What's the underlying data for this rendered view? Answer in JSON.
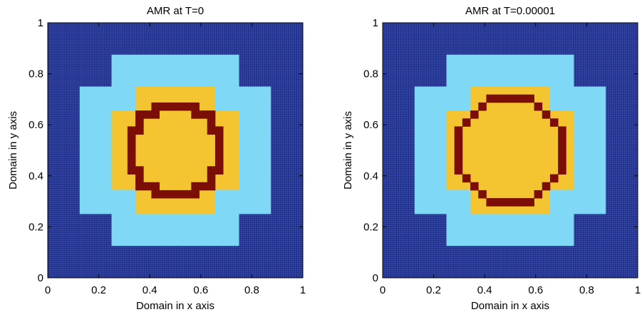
{
  "chart_data": [
    {
      "type": "heatmap",
      "title": "AMR at T=0",
      "xlabel": "Domain in x axis",
      "ylabel": "Domain in y axis",
      "xlim": [
        0,
        1
      ],
      "ylim": [
        0,
        1
      ],
      "xticks": [
        "0",
        "0.2",
        "0.4",
        "0.6",
        "0.8",
        "1"
      ],
      "yticks": [
        "0",
        "0.2",
        "0.4",
        "0.6",
        "0.8",
        "1"
      ],
      "levels": [
        {
          "level": 0,
          "color": "#1c2d8c",
          "desc": "finest grid background"
        },
        {
          "level": 1,
          "color": "#7ed8f6",
          "xmin": 0.125,
          "xmax": 0.875,
          "ymin": 0.125,
          "ymax": 0.875
        },
        {
          "level": 2,
          "color": "#f4c530",
          "xmin": 0.25,
          "xmax": 0.75,
          "ymin": 0.25,
          "ymax": 0.75
        },
        {
          "level": 3,
          "color": "#7b0e06",
          "ring_center": [
            0.5,
            0.5
          ],
          "ring_inner_radius": 0.16,
          "ring_outer_radius": 0.2
        }
      ]
    },
    {
      "type": "heatmap",
      "title": "AMR at T=0.00001",
      "xlabel": "Domain in x axis",
      "ylabel": "Domain in y axis",
      "xlim": [
        0,
        1
      ],
      "ylim": [
        0,
        1
      ],
      "xticks": [
        "0",
        "0.2",
        "0.4",
        "0.6",
        "0.8",
        "1"
      ],
      "yticks": [
        "0",
        "0.2",
        "0.4",
        "0.6",
        "0.8",
        "1"
      ],
      "levels": [
        {
          "level": 0,
          "color": "#1c2d8c",
          "desc": "finest grid background"
        },
        {
          "level": 1,
          "color": "#7ed8f6",
          "xmin": 0.125,
          "xmax": 0.875,
          "ymin": 0.125,
          "ymax": 0.875
        },
        {
          "level": 2,
          "color": "#f4c530",
          "xmin": 0.25,
          "xmax": 0.75,
          "ymin": 0.25,
          "ymax": 0.75
        },
        {
          "level": 3,
          "color": "#7b0e06",
          "ring_center": [
            0.5,
            0.5
          ],
          "ring_inner_radius": 0.19,
          "ring_outer_radius": 0.22
        }
      ]
    }
  ]
}
